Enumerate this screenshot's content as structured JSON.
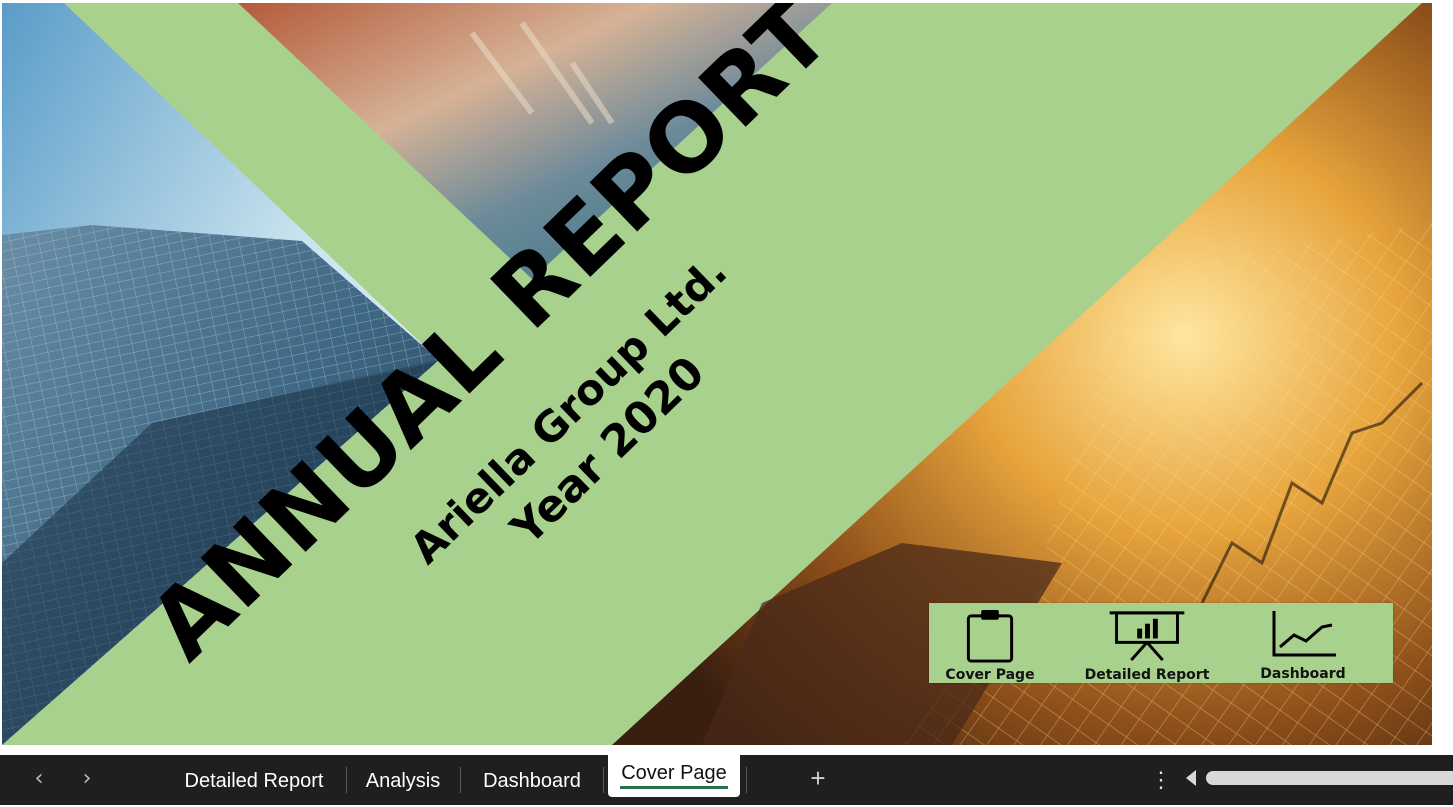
{
  "cover": {
    "title": "ANNUAL REPORT",
    "company": "Ariella Group Ltd.",
    "year_line": "Year 2020"
  },
  "nav_buttons": [
    {
      "label": "Cover Page",
      "icon": "clipboard-icon"
    },
    {
      "label": "Detailed Report",
      "icon": "presentation-chart-icon"
    },
    {
      "label": "Dashboard",
      "icon": "line-chart-icon"
    }
  ],
  "sheet_tabs": [
    {
      "label": "Detailed Report",
      "active": false
    },
    {
      "label": "Analysis",
      "active": false
    },
    {
      "label": "Dashboard",
      "active": false
    },
    {
      "label": "Cover Page",
      "active": true
    }
  ],
  "tabbar_controls": {
    "prev_icon": "chevron-left-icon",
    "next_icon": "chevron-right-icon",
    "add_label": "+",
    "more_label": "⋮"
  },
  "colors": {
    "band_green": "#a9d18e",
    "tab_accent": "#217346",
    "tabbar_bg": "#1f1f1f"
  }
}
